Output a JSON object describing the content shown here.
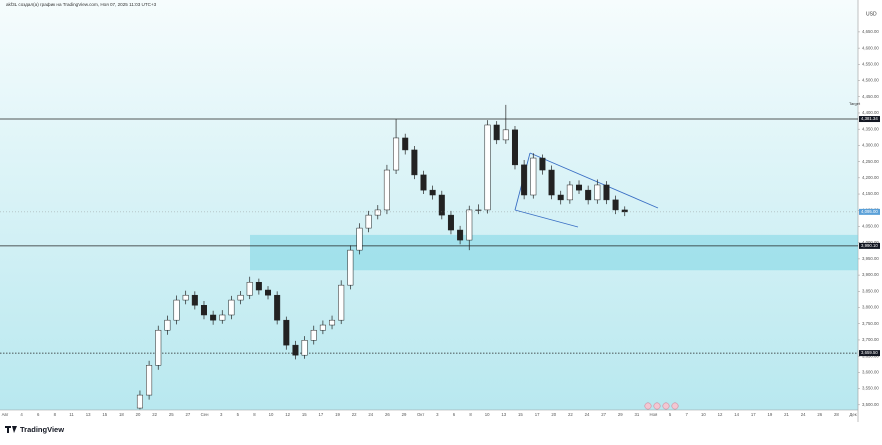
{
  "header": {
    "caption": "akf3L создал(а) график на TradingView.com, Ноя 07, 2025 11:03 UTC+3",
    "currency": "USD",
    "target_label": "Target",
    "logo": "TradingView"
  },
  "chart_data": {
    "type": "candlestick",
    "open": [
      3490,
      3530,
      3622,
      3730,
      3761,
      3823,
      3838,
      3807,
      3777,
      3761,
      3777,
      3823,
      3838,
      3878,
      3854,
      3838,
      3761,
      3684,
      3653,
      3699,
      3730,
      3746,
      3761,
      3869,
      3977,
      4045,
      4085,
      4101,
      4224,
      4323,
      4286,
      4209,
      4162,
      4147,
      4085,
      4039,
      4008,
      4101,
      4101,
      4363,
      4317,
      4348,
      4240,
      4147,
      4261,
      4224,
      4147,
      4132,
      4178,
      4162,
      4132,
      4178,
      4132,
      4101
    ],
    "high": [
      3544,
      3636,
      3744,
      3775,
      3837,
      3852,
      3850,
      3820,
      3790,
      3792,
      3836,
      3851,
      3895,
      3889,
      3866,
      3850,
      3772,
      3697,
      3712,
      3744,
      3760,
      3775,
      3884,
      3992,
      4060,
      4098,
      4116,
      4240,
      4381,
      4336,
      4298,
      4222,
      4176,
      4160,
      4098,
      4052,
      4114,
      4118,
      4378,
      4375,
      4425,
      4360,
      4255,
      4276,
      4272,
      4238,
      4160,
      4190,
      4192,
      4176,
      4195,
      4190,
      4145,
      4112
    ],
    "low": [
      3486,
      3516,
      3608,
      3716,
      3748,
      3810,
      3794,
      3764,
      3747,
      3750,
      3764,
      3810,
      3826,
      3840,
      3825,
      3748,
      3670,
      3640,
      3642,
      3686,
      3718,
      3733,
      3749,
      3856,
      3964,
      4032,
      4072,
      4088,
      4212,
      4272,
      4196,
      4150,
      4133,
      4072,
      4026,
      3995,
      3977,
      4088,
      4090,
      4304,
      4305,
      4226,
      4134,
      4136,
      4210,
      4134,
      4118,
      4120,
      4150,
      4118,
      4120,
      4119,
      4088,
      4082
    ],
    "close": [
      3530,
      3622,
      3730,
      3761,
      3823,
      3838,
      3807,
      3777,
      3761,
      3777,
      3823,
      3838,
      3878,
      3854,
      3838,
      3761,
      3684,
      3653,
      3699,
      3730,
      3746,
      3761,
      3869,
      3977,
      4045,
      4085,
      4101,
      4224,
      4323,
      4286,
      4209,
      4162,
      4147,
      4085,
      4039,
      4008,
      4101,
      4101,
      4363,
      4317,
      4348,
      4240,
      4147,
      4261,
      4224,
      4147,
      4132,
      4178,
      4162,
      4132,
      4178,
      4132,
      4101,
      4095
    ],
    "last_price_label": "4,095.00",
    "up_color": "#ffffff",
    "down_color": "#222222",
    "xlim": [
      -15.3,
      78.5
    ],
    "x_labels": [
      "Авг",
      "4",
      "6",
      "8",
      "11",
      "13",
      "15",
      "18",
      "20",
      "22",
      "25",
      "27",
      "Сен",
      "3",
      "5",
      "8",
      "10",
      "12",
      "15",
      "17",
      "19",
      "22",
      "24",
      "26",
      "29",
      "Окт",
      "3",
      "6",
      "8",
      "10",
      "13",
      "15",
      "17",
      "20",
      "22",
      "24",
      "27",
      "29",
      "31",
      "Ноя",
      "5",
      "7",
      "10",
      "12",
      "14",
      "17",
      "19",
      "21",
      "24",
      "26",
      "28",
      "Дек"
    ],
    "ylim": [
      3484,
      4733
    ],
    "yticks": [
      {
        "value": 4650,
        "label": "4,650.00"
      },
      {
        "value": 4600,
        "label": "4,600.00"
      },
      {
        "value": 4550,
        "label": "4,550.00"
      },
      {
        "value": 4500,
        "label": "4,500.00"
      },
      {
        "value": 4450,
        "label": "4,450.00"
      },
      {
        "value": 4400,
        "label": "4,400.00"
      },
      {
        "value": 4350,
        "label": "4,350.00"
      },
      {
        "value": 4300,
        "label": "4,300.00"
      },
      {
        "value": 4250,
        "label": "4,250.00"
      },
      {
        "value": 4200,
        "label": "4,200.00"
      },
      {
        "value": 4150,
        "label": "4,150.00"
      },
      {
        "value": 4100,
        "label": "4,100.00"
      },
      {
        "value": 4050,
        "label": "4,050.00"
      },
      {
        "value": 4000,
        "label": "4,000.00"
      },
      {
        "value": 3950,
        "label": "3,950.00"
      },
      {
        "value": 3900,
        "label": "3,900.00"
      },
      {
        "value": 3850,
        "label": "3,850.00"
      },
      {
        "value": 3800,
        "label": "3,800.00"
      },
      {
        "value": 3750,
        "label": "3,750.00"
      },
      {
        "value": 3700,
        "label": "3,700.00"
      },
      {
        "value": 3650,
        "label": "3,650.00"
      },
      {
        "value": 3600,
        "label": "3,600.00"
      },
      {
        "value": 3550,
        "label": "3,550.00"
      },
      {
        "value": 3500,
        "label": "3,500.00"
      }
    ],
    "levels": [
      {
        "value": 4381.34,
        "label": "4,381.34",
        "style": "solid"
      },
      {
        "value": 3990.1,
        "label": "3,990.10",
        "style": "solid"
      },
      {
        "value": 3659.5,
        "label": "3,659.50",
        "style": "dotted"
      }
    ],
    "zone": [
      3915,
      4024
    ],
    "zone_color": "#7dd6e4"
  }
}
